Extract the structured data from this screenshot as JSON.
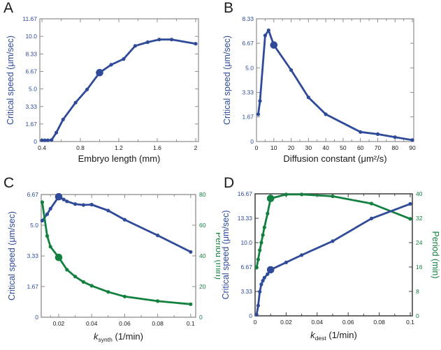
{
  "colors": {
    "line_blue": "#2e4a99",
    "line_green": "#12813f",
    "axis_text_blue": "#2e4a99",
    "axis_text_green": "#12813f",
    "box_gray": "#8c8c8c",
    "box_dark": "#3c3c3c",
    "text_black": "#1a1a1a"
  },
  "chart_data": [
    {
      "letter": "A",
      "type": "line",
      "title": "",
      "xlabel_text": "Embryo length (mm)",
      "xlabel_segments": [
        {
          "t": "Embryo length (mm)"
        }
      ],
      "ylabel_left": "Critical speed (μm/sec)",
      "ylabel_right": null,
      "xlim": [
        0.378,
        2.029
      ],
      "x_ticks": {
        "major": [
          0.4,
          0.8,
          1.2,
          1.6,
          2.0
        ],
        "labels": [
          "0.4",
          "0.8",
          "1.2",
          "1.6",
          "2"
        ],
        "minor": [
          0.6,
          1.0,
          1.4,
          1.8
        ]
      },
      "left_axis": {
        "range": [
          0,
          11.67
        ],
        "ticks": [
          0,
          1.67,
          3.33,
          5.0,
          6.67,
          8.33,
          10.0,
          11.67
        ],
        "labels": [
          "0",
          "1.67",
          "3.33",
          "5.0",
          "6.67",
          "8.33",
          "10.0",
          "11.67"
        ]
      },
      "right_axis": null,
      "series": [
        {
          "name": "critical_speed",
          "axis": "left",
          "color": "blue",
          "big_index": 8,
          "points": [
            [
              0.4,
              0.12
            ],
            [
              0.43,
              0.12
            ],
            [
              0.46,
              0.12
            ],
            [
              0.5,
              0.15
            ],
            [
              0.55,
              0.85
            ],
            [
              0.62,
              2.1
            ],
            [
              0.75,
              3.7
            ],
            [
              0.87,
              4.95
            ],
            [
              1.0,
              6.55
            ],
            [
              1.12,
              7.3
            ],
            [
              1.25,
              7.85
            ],
            [
              1.37,
              9.1
            ],
            [
              1.5,
              9.45
            ],
            [
              1.62,
              9.7
            ],
            [
              1.75,
              9.7
            ],
            [
              2.0,
              9.3
            ]
          ]
        }
      ]
    },
    {
      "letter": "B",
      "type": "line",
      "title": "",
      "xlabel_text": "Diffusion constant (μm²/s)",
      "xlabel_segments": [
        {
          "t": "Diffusion constant (μm²/s)"
        }
      ],
      "ylabel_left": "Critical speed (μm/sec)",
      "ylabel_right": null,
      "xlim": [
        0,
        90.8
      ],
      "x_ticks": {
        "major": [
          0,
          10,
          20,
          30,
          40,
          50,
          60,
          70,
          80,
          90
        ],
        "labels": [
          "0",
          "10",
          "20",
          "30",
          "40",
          "50",
          "60",
          "70",
          "80",
          "90"
        ],
        "minor": [
          5,
          15,
          25,
          35,
          45,
          55,
          65,
          75,
          85
        ]
      },
      "left_axis": {
        "range": [
          0,
          8.33
        ],
        "ticks": [
          0,
          1.67,
          3.33,
          5.0,
          6.67,
          8.33
        ],
        "labels": [
          "0",
          "1.67",
          "3.33",
          "5.0",
          "6.67",
          "8.33"
        ]
      },
      "right_axis": null,
      "series": [
        {
          "name": "critical_speed",
          "axis": "left",
          "color": "blue",
          "big_index": 4,
          "points": [
            [
              1,
              1.85
            ],
            [
              2,
              2.75
            ],
            [
              5,
              7.2
            ],
            [
              7,
              7.55
            ],
            [
              10,
              6.55
            ],
            [
              20,
              4.85
            ],
            [
              30,
              3.0
            ],
            [
              40,
              1.85
            ],
            [
              60,
              0.65
            ],
            [
              70,
              0.5
            ],
            [
              80,
              0.3
            ],
            [
              90,
              0.1
            ]
          ]
        }
      ]
    },
    {
      "letter": "C",
      "type": "line",
      "title": "",
      "xlabel_text": "k_synth (1/min)",
      "xlabel_segments": [
        {
          "t": "k",
          "i": true
        },
        {
          "t": "synth",
          "sub": true
        },
        {
          "t": " (1/min)"
        }
      ],
      "ylabel_left": "Critical speed (μm/sec)",
      "ylabel_right": "Period (min)",
      "xlim": [
        0.0094,
        0.10305
      ],
      "x_ticks": {
        "major": [
          0.02,
          0.04,
          0.06,
          0.08,
          0.1
        ],
        "labels": [
          "0.02",
          "0.04",
          "0.06",
          "0.08",
          "0.1"
        ],
        "minor": [
          0.015,
          0.03,
          0.05,
          0.07,
          0.09
        ]
      },
      "left_axis": {
        "range": [
          0,
          6.67
        ],
        "ticks": [
          0,
          1.67,
          3.33,
          5.0,
          6.67
        ],
        "labels": [
          "0",
          "1.67",
          "3.33",
          "5.0",
          "6.67"
        ]
      },
      "right_axis": {
        "range": [
          0,
          80
        ],
        "ticks": [
          0,
          20,
          40,
          60,
          80
        ],
        "labels": [
          "0",
          "20",
          "40",
          "60",
          "80"
        ]
      },
      "series": [
        {
          "name": "critical_speed",
          "axis": "left",
          "color": "blue",
          "big_index": 3,
          "points": [
            [
              0.01,
              5.25
            ],
            [
              0.013,
              5.6
            ],
            [
              0.015,
              5.9
            ],
            [
              0.02,
              6.55
            ],
            [
              0.023,
              6.4
            ],
            [
              0.025,
              6.3
            ],
            [
              0.03,
              6.15
            ],
            [
              0.035,
              6.1
            ],
            [
              0.04,
              6.12
            ],
            [
              0.05,
              5.8
            ],
            [
              0.06,
              5.3
            ],
            [
              0.08,
              4.45
            ],
            [
              0.1,
              3.55
            ]
          ]
        },
        {
          "name": "period",
          "axis": "right",
          "color": "green",
          "big_index": 3,
          "points": [
            [
              0.01,
              75
            ],
            [
              0.013,
              53
            ],
            [
              0.015,
              46
            ],
            [
              0.02,
              39
            ],
            [
              0.025,
              31
            ],
            [
              0.03,
              26.5
            ],
            [
              0.035,
              23
            ],
            [
              0.04,
              20.5
            ],
            [
              0.05,
              16.5
            ],
            [
              0.06,
              13.5
            ],
            [
              0.08,
              10.5
            ],
            [
              0.1,
              8.5
            ]
          ]
        }
      ]
    },
    {
      "letter": "D",
      "type": "line",
      "title": "",
      "xlabel_text": "k_dest (1/min)",
      "xlabel_segments": [
        {
          "t": "k",
          "i": true
        },
        {
          "t": "dest",
          "sub": true
        },
        {
          "t": " (1/min)"
        }
      ],
      "ylabel_left": "Critical speed (μm/sec)",
      "ylabel_right": "Period (min)",
      "xlim": [
        0,
        0.10135
      ],
      "x_ticks": {
        "major": [
          0,
          0.02,
          0.04,
          0.06,
          0.08,
          0.1
        ],
        "labels": [
          "0",
          "0.02",
          "0.04",
          "0.06",
          "0.08",
          "0.1"
        ],
        "minor": [
          0.01,
          0.03,
          0.05,
          0.07,
          0.09
        ]
      },
      "left_axis": {
        "range": [
          0,
          16.67
        ],
        "ticks": [
          0,
          3.33,
          6.67,
          10.0,
          13.33,
          16.67
        ],
        "labels": [
          "0",
          "3.33",
          "6.67",
          "10.0",
          "13.33",
          "16.67"
        ]
      },
      "right_axis": {
        "range": [
          0,
          40
        ],
        "ticks": [
          0,
          8,
          16,
          24,
          32,
          40
        ],
        "labels": [
          "0",
          "8",
          "16",
          "24",
          "32",
          "40"
        ]
      },
      "series": [
        {
          "name": "period",
          "axis": "right",
          "color": "green",
          "big_index": 7,
          "points": [
            [
              0.001,
              15.8
            ],
            [
              0.002,
              18.5
            ],
            [
              0.003,
              21.5
            ],
            [
              0.004,
              24.0
            ],
            [
              0.005,
              26.5
            ],
            [
              0.006,
              29.0
            ],
            [
              0.008,
              33.5
            ],
            [
              0.01,
              38.5
            ],
            [
              0.02,
              39.8
            ],
            [
              0.03,
              39.8
            ],
            [
              0.05,
              39.2
            ],
            [
              0.075,
              36.8
            ],
            [
              0.1,
              31.8
            ]
          ]
        },
        {
          "name": "critical_speed",
          "axis": "left",
          "color": "blue",
          "big_index": 7,
          "points": [
            [
              0.001,
              0.15
            ],
            [
              0.002,
              1.4
            ],
            [
              0.003,
              3.3
            ],
            [
              0.004,
              4.3
            ],
            [
              0.005,
              4.8
            ],
            [
              0.006,
              5.2
            ],
            [
              0.008,
              5.7
            ],
            [
              0.01,
              6.3
            ],
            [
              0.02,
              7.3
            ],
            [
              0.03,
              8.3
            ],
            [
              0.05,
              10.2
            ],
            [
              0.075,
              13.3
            ],
            [
              0.1,
              15.3
            ]
          ]
        }
      ]
    }
  ]
}
